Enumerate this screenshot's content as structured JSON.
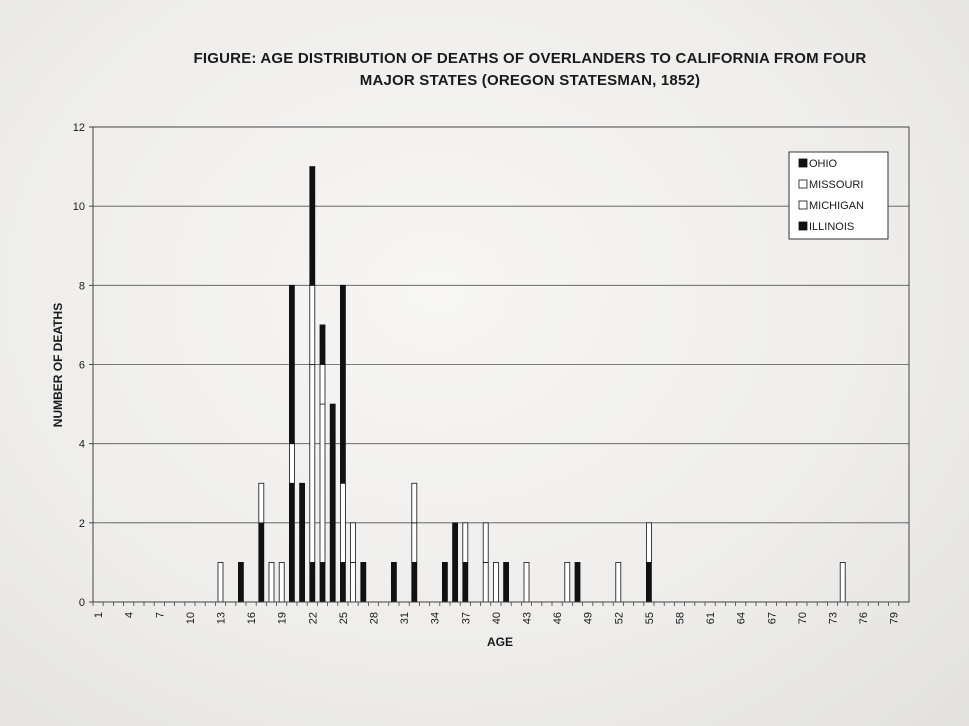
{
  "title_line1": "FIGURE: AGE DISTRIBUTION OF DEATHS OF OVERLANDERS TO CALIFORNIA FROM FOUR",
  "title_line2": "MAJOR STATES (OREGON STATESMAN, 1852)",
  "chart_data": {
    "type": "bar",
    "stacked": true,
    "xlabel": "AGE",
    "ylabel": "NUMBER OF DEATHS",
    "x": [
      1,
      2,
      3,
      4,
      5,
      6,
      7,
      8,
      9,
      10,
      11,
      12,
      13,
      14,
      15,
      16,
      17,
      18,
      19,
      20,
      21,
      22,
      23,
      24,
      25,
      26,
      27,
      28,
      29,
      30,
      31,
      32,
      33,
      34,
      35,
      36,
      37,
      38,
      39,
      40,
      41,
      42,
      43,
      44,
      45,
      46,
      47,
      48,
      49,
      50,
      51,
      52,
      53,
      54,
      55,
      56,
      57,
      58,
      59,
      60,
      61,
      62,
      63,
      64,
      65,
      66,
      67,
      68,
      69,
      70,
      71,
      72,
      73,
      74,
      75,
      76,
      77,
      78,
      79,
      80
    ],
    "x_tick_labels": [
      "1",
      "4",
      "7",
      "10",
      "13",
      "16",
      "19",
      "22",
      "25",
      "28",
      "31",
      "34",
      "37",
      "40",
      "43",
      "46",
      "49",
      "52",
      "55",
      "58",
      "61",
      "64",
      "67",
      "70",
      "73",
      "76",
      "79"
    ],
    "y_ticks": [
      0,
      2,
      4,
      6,
      8,
      10,
      12
    ],
    "ylim": [
      0,
      12
    ],
    "grid": "horizontal",
    "legend_position": "top-right",
    "series": [
      {
        "name": "OHIO",
        "color": "#111111",
        "values": [
          0,
          0,
          0,
          0,
          0,
          0,
          0,
          0,
          0,
          0,
          0,
          0,
          0,
          0,
          0,
          0,
          0,
          0,
          0,
          4,
          3,
          3,
          1,
          5,
          5,
          0,
          0,
          0,
          0,
          0,
          0,
          0,
          0,
          0,
          0,
          0,
          0,
          0,
          0,
          0,
          0,
          0,
          0,
          0,
          0,
          0,
          0,
          0,
          0,
          0,
          0,
          0,
          0,
          0,
          0,
          0,
          0,
          0,
          0,
          0,
          0,
          0,
          0,
          0,
          0,
          0,
          0,
          0,
          0,
          0,
          0,
          0,
          0,
          0,
          0,
          0,
          0,
          0,
          0,
          0
        ]
      },
      {
        "name": "MISSOURI",
        "color": "#ffffff",
        "values": [
          0,
          0,
          0,
          0,
          0,
          0,
          0,
          0,
          0,
          0,
          0,
          0,
          0,
          0,
          0,
          0,
          0,
          1,
          0,
          1,
          0,
          2,
          1,
          0,
          2,
          1,
          0,
          0,
          0,
          0,
          0,
          1,
          0,
          0,
          0,
          0,
          1,
          0,
          1,
          1,
          0,
          0,
          1,
          0,
          0,
          0,
          0,
          0,
          0,
          0,
          0,
          1,
          0,
          0,
          1,
          0,
          0,
          0,
          0,
          0,
          0,
          0,
          0,
          0,
          0,
          0,
          0,
          0,
          0,
          0,
          0,
          0,
          0,
          1,
          0,
          0,
          0,
          0,
          0,
          0
        ]
      },
      {
        "name": "MICHIGAN",
        "color": "#ffffff",
        "values": [
          0,
          0,
          0,
          0,
          0,
          0,
          0,
          0,
          0,
          0,
          0,
          0,
          1,
          0,
          0,
          0,
          1,
          0,
          1,
          0,
          0,
          5,
          4,
          0,
          0,
          1,
          0,
          0,
          0,
          0,
          0,
          1,
          0,
          0,
          0,
          0,
          0,
          0,
          1,
          0,
          0,
          0,
          0,
          0,
          0,
          0,
          1,
          0,
          0,
          0,
          0,
          0,
          0,
          0,
          0,
          0,
          0,
          0,
          0,
          0,
          0,
          0,
          0,
          0,
          0,
          0,
          0,
          0,
          0,
          0,
          0,
          0,
          0,
          0,
          0,
          0,
          0,
          0,
          0,
          0
        ]
      },
      {
        "name": "ILLINOIS",
        "color": "#111111",
        "values": [
          0,
          0,
          0,
          0,
          0,
          0,
          0,
          0,
          0,
          0,
          0,
          0,
          0,
          0,
          1,
          0,
          2,
          0,
          0,
          3,
          0,
          1,
          1,
          0,
          1,
          0,
          1,
          0,
          0,
          1,
          0,
          1,
          0,
          0,
          1,
          2,
          1,
          0,
          0,
          0,
          1,
          0,
          0,
          0,
          0,
          0,
          0,
          1,
          0,
          0,
          0,
          0,
          0,
          0,
          1,
          0,
          0,
          0,
          0,
          0,
          0,
          0,
          0,
          0,
          0,
          0,
          0,
          0,
          0,
          0,
          0,
          0,
          0,
          0,
          0,
          0,
          0,
          0,
          0,
          0
        ]
      }
    ]
  }
}
